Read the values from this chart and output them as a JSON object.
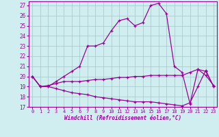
{
  "xlabel": "Windchill (Refroidissement éolien,°C)",
  "bg_color": "#d0eef0",
  "line_color": "#990099",
  "grid_color": "#aacccc",
  "xlim": [
    -0.5,
    23.4
  ],
  "ylim": [
    17,
    27.4
  ],
  "xticks": [
    0,
    1,
    2,
    3,
    4,
    5,
    6,
    7,
    8,
    9,
    10,
    11,
    12,
    13,
    14,
    15,
    16,
    17,
    18,
    19,
    20,
    21,
    22,
    23
  ],
  "yticks": [
    17,
    18,
    19,
    20,
    21,
    22,
    23,
    24,
    25,
    26,
    27
  ],
  "line1_x": [
    0,
    1,
    2,
    3,
    4,
    5,
    6,
    7,
    8,
    9,
    10,
    11,
    12,
    13,
    14,
    15,
    16,
    17,
    18,
    19,
    20,
    21,
    22,
    23
  ],
  "line1_y": [
    20,
    19,
    19,
    19.5,
    20,
    20.5,
    21,
    23,
    23,
    23.3,
    24.5,
    25.5,
    25.7,
    25.0,
    25.3,
    27.0,
    27.2,
    26.2,
    21.0,
    20.4,
    17.3,
    20.7,
    20.5,
    19.0
  ],
  "line2_x": [
    0,
    1,
    2,
    3,
    4,
    5,
    6,
    7,
    8,
    9,
    10,
    11,
    12,
    13,
    14,
    15,
    16,
    17,
    18,
    19,
    20,
    21,
    22,
    23
  ],
  "line2_y": [
    20,
    19,
    19.1,
    19.3,
    19.5,
    19.5,
    19.5,
    19.6,
    19.7,
    19.7,
    19.8,
    19.9,
    19.9,
    20.0,
    20.0,
    20.1,
    20.1,
    20.1,
    20.1,
    20.1,
    20.4,
    20.7,
    20.1,
    19.1
  ],
  "line3_x": [
    0,
    1,
    2,
    3,
    4,
    5,
    6,
    7,
    8,
    9,
    10,
    11,
    12,
    13,
    14,
    15,
    16,
    17,
    18,
    19,
    20,
    21,
    22,
    23
  ],
  "line3_y": [
    20,
    19,
    19.0,
    18.8,
    18.6,
    18.4,
    18.3,
    18.2,
    18.0,
    17.9,
    17.8,
    17.7,
    17.6,
    17.5,
    17.5,
    17.5,
    17.4,
    17.3,
    17.2,
    17.1,
    17.4,
    19.0,
    20.6,
    19.0
  ]
}
